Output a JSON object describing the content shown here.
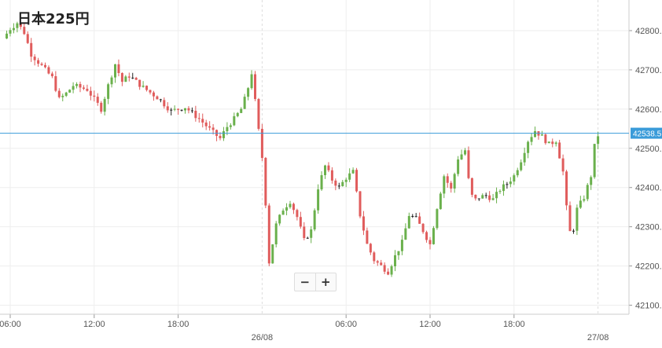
{
  "chart_data": {
    "type": "candlestick",
    "title": "日本225円",
    "current_price": 42538.5,
    "current_price_label": "42538.5",
    "yticks": [
      42100,
      42200,
      42300,
      42400,
      42500,
      42600,
      42700,
      42800
    ],
    "ytick_labels": [
      "42100.0",
      "42200.0",
      "42300.0",
      "42400.0",
      "42500.0",
      "42600.0",
      "42700.0",
      "42800.0"
    ],
    "ylim": [
      42080,
      42880
    ],
    "xlim": [
      0,
      38.7
    ],
    "time_ticks": [
      {
        "label": "06:00",
        "hours": 0.5
      },
      {
        "label": "12:00",
        "hours": 6.5
      },
      {
        "label": "18:00",
        "hours": 12.5
      },
      {
        "label": "06:00",
        "hours": 24.5
      },
      {
        "label": "12:00",
        "hours": 30.5
      },
      {
        "label": "18:00",
        "hours": 36.5
      }
    ],
    "date_ticks": [
      {
        "label": "26/08",
        "hours": 18.5
      },
      {
        "label": "27/08",
        "hours": 42.5
      }
    ],
    "colors": {
      "up": "#6ab04c",
      "down": "#e05c5c",
      "doji": "#222222",
      "price_line": "#3a9bd9",
      "grid": "#eeeeee",
      "axis": "#cccccc"
    },
    "close_path": [
      {
        "t": 0.0,
        "c": 42780
      },
      {
        "t": 0.5,
        "c": 42805
      },
      {
        "t": 1.0,
        "c": 42820
      },
      {
        "t": 1.5,
        "c": 42795
      },
      {
        "t": 2.0,
        "c": 42740
      },
      {
        "t": 2.5,
        "c": 42720
      },
      {
        "t": 3.0,
        "c": 42700
      },
      {
        "t": 3.5,
        "c": 42680
      },
      {
        "t": 4.0,
        "c": 42625
      },
      {
        "t": 4.5,
        "c": 42640
      },
      {
        "t": 5.0,
        "c": 42660
      },
      {
        "t": 6.0,
        "c": 42650
      },
      {
        "t": 7.0,
        "c": 42600
      },
      {
        "t": 7.5,
        "c": 42660
      },
      {
        "t": 8.0,
        "c": 42715
      },
      {
        "t": 8.5,
        "c": 42670
      },
      {
        "t": 9.0,
        "c": 42685
      },
      {
        "t": 10.0,
        "c": 42655
      },
      {
        "t": 11.0,
        "c": 42630
      },
      {
        "t": 12.0,
        "c": 42595
      },
      {
        "t": 12.5,
        "c": 42600
      },
      {
        "t": 13.0,
        "c": 42605
      },
      {
        "t": 14.0,
        "c": 42575
      },
      {
        "t": 15.0,
        "c": 42540
      },
      {
        "t": 15.5,
        "c": 42525
      },
      {
        "t": 16.0,
        "c": 42555
      },
      {
        "t": 16.5,
        "c": 42575
      },
      {
        "t": 17.0,
        "c": 42600
      },
      {
        "t": 17.4,
        "c": 42640
      },
      {
        "t": 17.8,
        "c": 42700
      },
      {
        "t": 18.0,
        "c": 42620
      },
      {
        "t": 18.3,
        "c": 42530
      },
      {
        "t": 18.6,
        "c": 42450
      },
      {
        "t": 19.0,
        "c": 42210
      },
      {
        "t": 19.5,
        "c": 42305
      },
      {
        "t": 20.0,
        "c": 42345
      },
      {
        "t": 20.5,
        "c": 42365
      },
      {
        "t": 21.0,
        "c": 42325
      },
      {
        "t": 21.5,
        "c": 42265
      },
      {
        "t": 22.0,
        "c": 42290
      },
      {
        "t": 22.5,
        "c": 42400
      },
      {
        "t": 23.0,
        "c": 42455
      },
      {
        "t": 23.5,
        "c": 42420
      },
      {
        "t": 24.0,
        "c": 42400
      },
      {
        "t": 24.5,
        "c": 42425
      },
      {
        "t": 25.0,
        "c": 42440
      },
      {
        "t": 25.5,
        "c": 42330
      },
      {
        "t": 26.0,
        "c": 42255
      },
      {
        "t": 26.5,
        "c": 42215
      },
      {
        "t": 27.0,
        "c": 42200
      },
      {
        "t": 27.5,
        "c": 42185
      },
      {
        "t": 28.0,
        "c": 42225
      },
      {
        "t": 28.5,
        "c": 42260
      },
      {
        "t": 29.0,
        "c": 42330
      },
      {
        "t": 29.5,
        "c": 42320
      },
      {
        "t": 30.0,
        "c": 42290
      },
      {
        "t": 30.5,
        "c": 42255
      },
      {
        "t": 31.0,
        "c": 42350
      },
      {
        "t": 31.5,
        "c": 42430
      },
      {
        "t": 32.0,
        "c": 42395
      },
      {
        "t": 32.5,
        "c": 42475
      },
      {
        "t": 33.0,
        "c": 42495
      },
      {
        "t": 33.3,
        "c": 42405
      },
      {
        "t": 33.6,
        "c": 42365
      },
      {
        "t": 34.0,
        "c": 42375
      },
      {
        "t": 34.5,
        "c": 42380
      },
      {
        "t": 35.0,
        "c": 42370
      },
      {
        "t": 35.5,
        "c": 42395
      },
      {
        "t": 36.0,
        "c": 42410
      },
      {
        "t": 36.5,
        "c": 42430
      },
      {
        "t": 37.0,
        "c": 42470
      },
      {
        "t": 37.5,
        "c": 42520
      },
      {
        "t": 38.0,
        "c": 42545
      },
      {
        "t": 38.5,
        "c": 42530
      },
      {
        "t": 39.0,
        "c": 42510
      },
      {
        "t": 39.5,
        "c": 42520
      },
      {
        "t": 40.0,
        "c": 42440
      },
      {
        "t": 40.3,
        "c": 42330
      },
      {
        "t": 40.6,
        "c": 42265
      },
      {
        "t": 41.0,
        "c": 42345
      },
      {
        "t": 41.5,
        "c": 42375
      },
      {
        "t": 42.0,
        "c": 42430
      },
      {
        "t": 42.3,
        "c": 42520
      },
      {
        "t": 42.6,
        "c": 42540
      }
    ]
  },
  "controls": {
    "zoom_out_label": "−",
    "zoom_in_label": "+"
  }
}
